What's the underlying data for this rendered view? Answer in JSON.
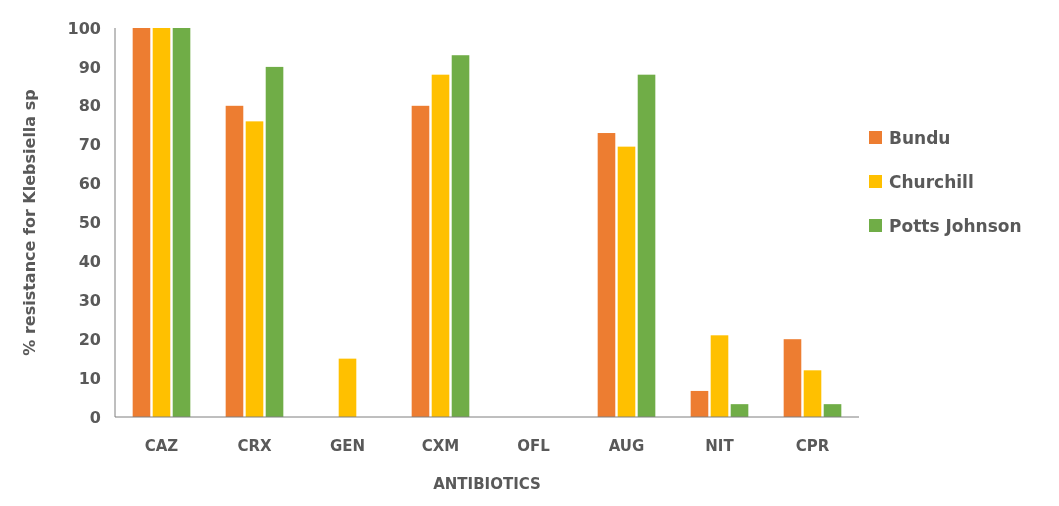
{
  "chart_data": {
    "type": "bar",
    "xlabel": "ANTIBIOTICS",
    "ylabel": "% resistance for Klebsiella sp",
    "categories": [
      "CAZ",
      "CRX",
      "GEN",
      "CXM",
      "OFL",
      "AUG",
      "NIT",
      "CPR"
    ],
    "series": [
      {
        "name": "Bundu",
        "color": "#ed7d31",
        "values": [
          100,
          80,
          0,
          80,
          0,
          73,
          6.7,
          20
        ]
      },
      {
        "name": "Churchill",
        "color": "#ffc000",
        "values": [
          100,
          76,
          15,
          88,
          0,
          69.5,
          21,
          12
        ]
      },
      {
        "name": "Potts Johnson",
        "color": "#70ad47",
        "values": [
          100,
          90,
          0,
          93,
          0,
          88,
          3.3,
          3.3
        ]
      }
    ],
    "ylim": [
      0,
      100
    ],
    "yticks": [
      0,
      10,
      20,
      30,
      40,
      50,
      60,
      70,
      80,
      90,
      100
    ],
    "grid": false,
    "legend": "right"
  }
}
